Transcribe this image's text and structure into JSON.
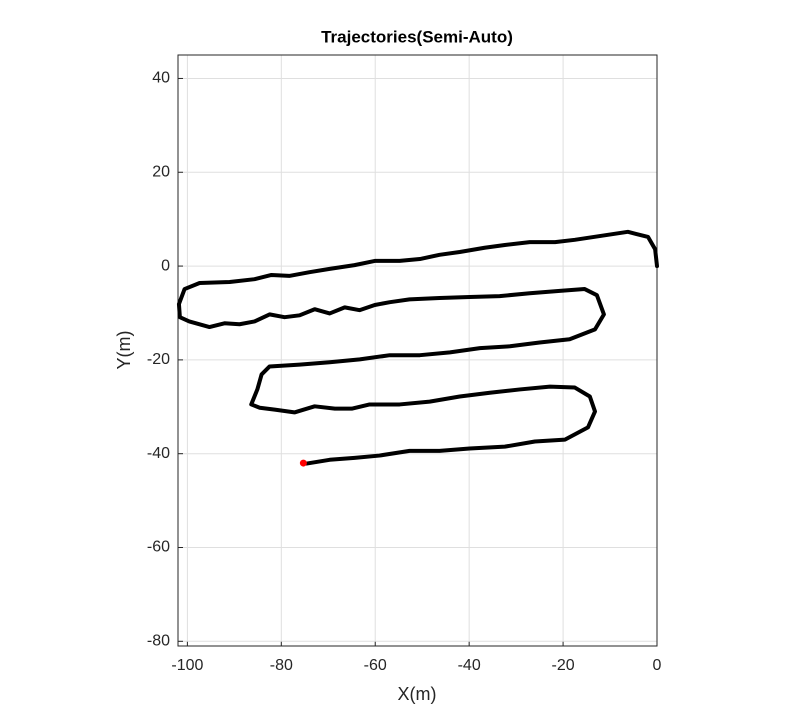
{
  "chart_data": {
    "type": "line",
    "title": "Trajectories(Semi-Auto)",
    "x_label": "X(m)",
    "y_label": "Y(m)",
    "xlim": [
      -102,
      0
    ],
    "ylim": [
      -81,
      45
    ],
    "xticks": [
      -100,
      -80,
      -60,
      -40,
      -20,
      0
    ],
    "yticks": [
      -80,
      -60,
      -40,
      -20,
      0,
      20,
      40
    ],
    "grid": true,
    "series": [
      {
        "color": "#000000",
        "x": [
          0,
          -0.4,
          -1.9,
          -6.2,
          -12.2,
          -17.5,
          -21.7,
          -27.1,
          -32.4,
          -36.7,
          -42,
          -46.3,
          -50.5,
          -54.8,
          -60.1,
          -64.4,
          -69.7,
          -74,
          -78.3,
          -82.1,
          -85.7,
          -91,
          -97.4,
          -100.6,
          -101.8,
          -101.6,
          -99.6,
          -95.3,
          -92.1,
          -88.9,
          -85.7,
          -82.5,
          -79.3,
          -76.1,
          -72.9,
          -69.7,
          -66.5,
          -63.3,
          -60.1,
          -56.9,
          -52.7,
          -46.3,
          -39.9,
          -33.5,
          -27.1,
          -20.7,
          -15.4,
          -12.8,
          -11.3,
          -13.2,
          -18.6,
          -25,
          -31.3,
          -37.7,
          -44.1,
          -50.5,
          -56.9,
          -63.3,
          -69.7,
          -76.1,
          -82.5,
          -84.2,
          -85.1,
          -86.4,
          -84.6,
          -81.4,
          -77.2,
          -72.9,
          -68.6,
          -65,
          -61.2,
          -54.8,
          -48.4,
          -42,
          -35.6,
          -29.2,
          -22.8,
          -17.5,
          -14.3,
          -13.2,
          -14.7,
          -19.6,
          -26,
          -32.4,
          -39.9,
          -46.3,
          -52.7,
          -59.1,
          -64.4,
          -69.7,
          -74.6
        ],
        "values": [
          0,
          3.6,
          6.2,
          7.3,
          6.4,
          5.6,
          5.1,
          5.1,
          4.5,
          3.9,
          3,
          2.4,
          1.5,
          1.1,
          1.1,
          0.2,
          -0.6,
          -1.3,
          -2.1,
          -1.9,
          -2.8,
          -3.4,
          -3.6,
          -4.9,
          -8.1,
          -10.9,
          -11.8,
          -13,
          -12.2,
          -12.4,
          -11.8,
          -10.3,
          -10.9,
          -10.5,
          -9.2,
          -10.1,
          -8.8,
          -9.4,
          -8.3,
          -7.7,
          -7.1,
          -6.8,
          -6.6,
          -6.4,
          -5.8,
          -5.3,
          -4.9,
          -6.2,
          -10.3,
          -13.5,
          -15.6,
          -16.3,
          -17.1,
          -17.5,
          -18.4,
          -19,
          -19,
          -19.9,
          -20.5,
          -21,
          -21.4,
          -23.1,
          -26.3,
          -29.5,
          -30.2,
          -30.6,
          -31.2,
          -29.9,
          -30.4,
          -30.4,
          -29.5,
          -29.5,
          -28.9,
          -27.8,
          -27,
          -26.3,
          -25.7,
          -25.9,
          -27.8,
          -31,
          -34.4,
          -37,
          -37.4,
          -38.5,
          -38.9,
          -39.4,
          -39.4,
          -40.4,
          -40.9,
          -41.3,
          -42.1
        ]
      },
      {
        "color": "#ff0000",
        "x": [
          -75.3
        ],
        "values": [
          -42
        ]
      }
    ]
  }
}
